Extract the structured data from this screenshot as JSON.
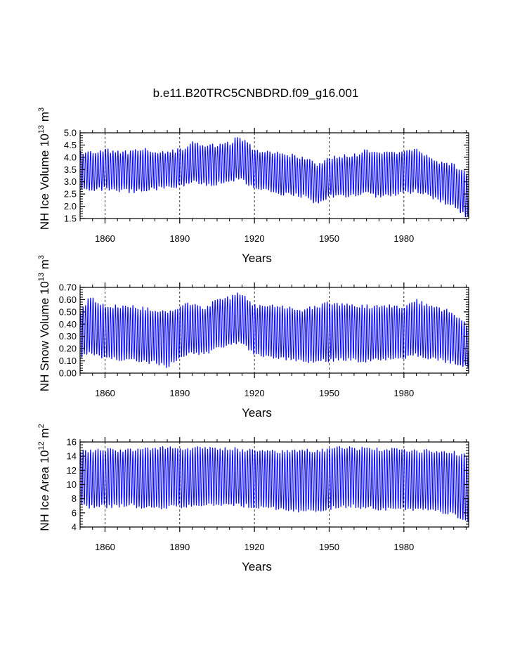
{
  "title": "b.e11.B20TRC5CNBDRD.f09_g16.001",
  "colors": {
    "series": "#0000ff",
    "axis": "#000000",
    "grid": "#000000"
  },
  "chart_data": [
    {
      "type": "line",
      "ylabel": "NH Ice Volume 10",
      "ylabel_exp": "13",
      "ylabel_unit": " m",
      "ylabel_unit_exp": "3",
      "xlabel": "Years",
      "xlim": [
        1850,
        2006
      ],
      "ylim": [
        1.5,
        5.0
      ],
      "x_ticks": [
        1860,
        1890,
        1920,
        1950,
        1980
      ],
      "x_tick_labels": [
        "1860",
        "1890",
        "1920",
        "1950",
        "1980"
      ],
      "y_ticks": [
        1.5,
        2.0,
        2.5,
        3.0,
        3.5,
        4.0,
        4.5,
        5.0
      ],
      "y_tick_labels": [
        "1.5",
        "2.0",
        "2.5",
        "3.0",
        "3.5",
        "4.0",
        "4.5",
        "5.0"
      ],
      "grid_x": true,
      "seasonal_cycle": true,
      "annual_max": {
        "x": [
          1850,
          1860,
          1870,
          1875,
          1880,
          1890,
          1895,
          1900,
          1905,
          1910,
          1913,
          1916,
          1920,
          1930,
          1940,
          1945,
          1950,
          1960,
          1965,
          1970,
          1980,
          1985,
          1990,
          1995,
          2000,
          2005
        ],
        "y": [
          4.2,
          4.3,
          4.2,
          4.4,
          4.2,
          4.3,
          4.6,
          4.5,
          4.5,
          4.6,
          4.8,
          4.7,
          4.3,
          4.2,
          4.0,
          3.7,
          4.0,
          4.1,
          4.3,
          4.2,
          4.2,
          4.3,
          4.0,
          3.8,
          3.7,
          3.4
        ]
      },
      "annual_min": {
        "x": [
          1850,
          1860,
          1870,
          1875,
          1880,
          1890,
          1895,
          1900,
          1905,
          1910,
          1913,
          1916,
          1920,
          1930,
          1940,
          1945,
          1950,
          1960,
          1965,
          1970,
          1980,
          1985,
          1990,
          1995,
          2000,
          2005
        ],
        "y": [
          2.6,
          2.7,
          2.6,
          2.6,
          2.7,
          2.8,
          3.0,
          2.9,
          2.9,
          3.0,
          3.1,
          3.0,
          2.7,
          2.5,
          2.4,
          2.1,
          2.4,
          2.4,
          2.5,
          2.4,
          2.5,
          2.6,
          2.4,
          2.2,
          2.0,
          1.6
        ]
      }
    },
    {
      "type": "line",
      "ylabel": "NH Snow Volume 10",
      "ylabel_exp": "13",
      "ylabel_unit": " m",
      "ylabel_unit_exp": "3",
      "xlabel": "Years",
      "xlim": [
        1850,
        2006
      ],
      "ylim": [
        0.0,
        0.7
      ],
      "x_ticks": [
        1860,
        1890,
        1920,
        1950,
        1980
      ],
      "x_tick_labels": [
        "1860",
        "1890",
        "1920",
        "1950",
        "1980"
      ],
      "y_ticks": [
        0.0,
        0.1,
        0.2,
        0.3,
        0.4,
        0.5,
        0.6,
        0.7
      ],
      "y_tick_labels": [
        "0.00",
        "0.10",
        "0.20",
        "0.30",
        "0.40",
        "0.50",
        "0.60",
        "0.70"
      ],
      "grid_x": true,
      "seasonal_cycle": true,
      "annual_max": {
        "x": [
          1850,
          1854,
          1860,
          1870,
          1880,
          1885,
          1890,
          1895,
          1900,
          1905,
          1910,
          1915,
          1920,
          1930,
          1940,
          1950,
          1960,
          1970,
          1980,
          1985,
          1990,
          2000,
          2005
        ],
        "y": [
          0.5,
          0.62,
          0.55,
          0.55,
          0.52,
          0.5,
          0.55,
          0.58,
          0.52,
          0.62,
          0.62,
          0.66,
          0.55,
          0.55,
          0.52,
          0.58,
          0.55,
          0.55,
          0.55,
          0.6,
          0.55,
          0.5,
          0.4
        ]
      },
      "annual_min": {
        "x": [
          1850,
          1854,
          1860,
          1870,
          1880,
          1885,
          1890,
          1895,
          1900,
          1905,
          1910,
          1915,
          1920,
          1930,
          1940,
          1950,
          1960,
          1970,
          1980,
          1985,
          1990,
          2000,
          2005
        ],
        "y": [
          0.12,
          0.15,
          0.12,
          0.1,
          0.08,
          0.05,
          0.12,
          0.15,
          0.15,
          0.2,
          0.22,
          0.25,
          0.15,
          0.12,
          0.08,
          0.1,
          0.1,
          0.1,
          0.12,
          0.15,
          0.12,
          0.08,
          0.05
        ]
      }
    },
    {
      "type": "line",
      "ylabel": "NH Ice Area 10",
      "ylabel_exp": "12",
      "ylabel_unit": " m",
      "ylabel_unit_exp": "2",
      "xlabel": "Years",
      "xlim": [
        1850,
        2006
      ],
      "ylim": [
        4,
        16
      ],
      "x_ticks": [
        1860,
        1890,
        1920,
        1950,
        1980
      ],
      "x_tick_labels": [
        "1860",
        "1890",
        "1920",
        "1950",
        "1980"
      ],
      "y_ticks": [
        4,
        6,
        8,
        10,
        12,
        14,
        16
      ],
      "y_tick_labels": [
        "4",
        "6",
        "8",
        "10",
        "12",
        "14",
        "16"
      ],
      "grid_x": true,
      "seasonal_cycle": true,
      "annual_max": {
        "x": [
          1850,
          1860,
          1870,
          1880,
          1890,
          1900,
          1910,
          1920,
          1930,
          1940,
          1950,
          1955,
          1960,
          1970,
          1980,
          1990,
          2000,
          2005
        ],
        "y": [
          14.8,
          15.0,
          14.9,
          15.2,
          15.2,
          15.2,
          15.2,
          14.8,
          14.7,
          14.8,
          15.0,
          15.4,
          15.2,
          15.0,
          15.0,
          14.8,
          14.6,
          14.2
        ]
      },
      "annual_min": {
        "x": [
          1850,
          1860,
          1870,
          1880,
          1890,
          1900,
          1910,
          1920,
          1930,
          1940,
          1950,
          1955,
          1960,
          1970,
          1980,
          1990,
          2000,
          2005
        ],
        "y": [
          6.8,
          6.8,
          7.0,
          6.5,
          6.8,
          7.0,
          7.0,
          6.8,
          6.5,
          6.2,
          6.5,
          6.8,
          6.8,
          6.5,
          6.5,
          6.2,
          5.8,
          4.8
        ]
      }
    }
  ]
}
